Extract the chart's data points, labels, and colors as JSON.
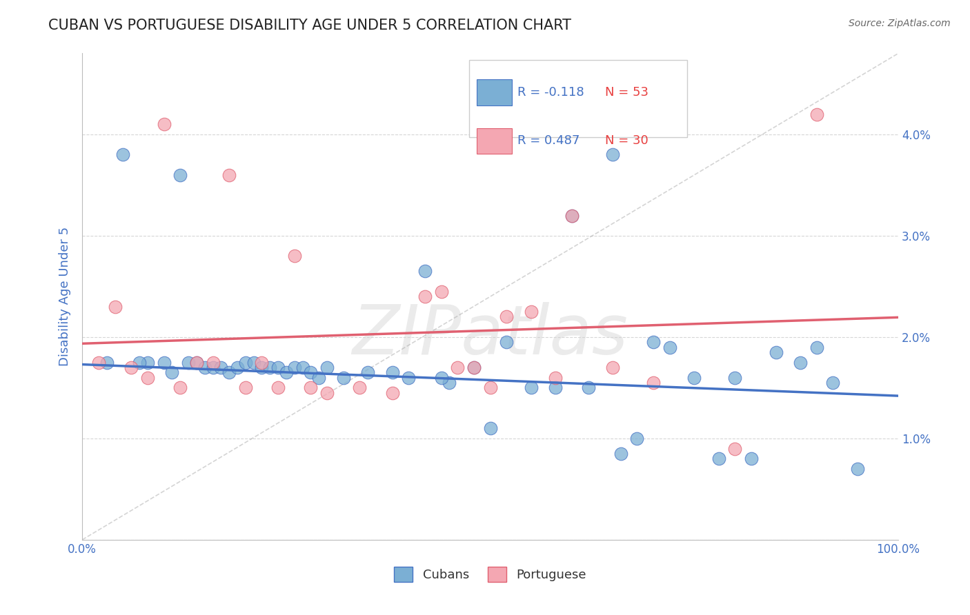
{
  "title": "CUBAN VS PORTUGUESE DISABILITY AGE UNDER 5 CORRELATION CHART",
  "source": "Source: ZipAtlas.com",
  "ylabel": "Disability Age Under 5",
  "xlim": [
    0.0,
    100.0
  ],
  "ylim": [
    0.0,
    4.8
  ],
  "yticks": [
    0.0,
    1.0,
    2.0,
    3.0,
    4.0
  ],
  "xticks": [
    0.0,
    25.0,
    50.0,
    75.0,
    100.0
  ],
  "xtick_labels": [
    "0.0%",
    "",
    "",
    "",
    "100.0%"
  ],
  "blue_r": "-0.118",
  "blue_n": "53",
  "pink_r": "0.487",
  "pink_n": "30",
  "blue_color": "#7BAFD4",
  "pink_color": "#F4A7B2",
  "blue_line_color": "#4472C4",
  "pink_line_color": "#E06070",
  "watermark": "ZIPatlas",
  "cubans_x": [
    3,
    5,
    8,
    10,
    12,
    13,
    14,
    15,
    16,
    17,
    18,
    19,
    20,
    21,
    22,
    23,
    24,
    25,
    26,
    27,
    28,
    30,
    32,
    35,
    38,
    40,
    42,
    45,
    48,
    50,
    52,
    55,
    58,
    60,
    62,
    65,
    68,
    70,
    72,
    75,
    78,
    80,
    82,
    85,
    88,
    90,
    92,
    95,
    7,
    11,
    29,
    44,
    66
  ],
  "cubans_y": [
    1.75,
    3.8,
    1.75,
    1.75,
    3.6,
    1.75,
    1.75,
    1.7,
    1.7,
    1.7,
    1.65,
    1.7,
    1.75,
    1.75,
    1.7,
    1.7,
    1.7,
    1.65,
    1.7,
    1.7,
    1.65,
    1.7,
    1.6,
    1.65,
    1.65,
    1.6,
    2.65,
    1.55,
    1.7,
    1.1,
    1.95,
    1.5,
    1.5,
    3.2,
    1.5,
    3.8,
    1.0,
    1.95,
    1.9,
    1.6,
    0.8,
    1.6,
    0.8,
    1.85,
    1.75,
    1.9,
    1.55,
    0.7,
    1.75,
    1.65,
    1.6,
    1.6,
    0.85
  ],
  "portuguese_x": [
    2,
    4,
    6,
    8,
    10,
    12,
    14,
    16,
    18,
    20,
    22,
    24,
    26,
    28,
    30,
    34,
    38,
    42,
    44,
    46,
    48,
    50,
    52,
    55,
    58,
    60,
    65,
    70,
    80,
    90
  ],
  "portuguese_y": [
    1.75,
    2.3,
    1.7,
    1.6,
    4.1,
    1.5,
    1.75,
    1.75,
    3.6,
    1.5,
    1.75,
    1.5,
    2.8,
    1.5,
    1.45,
    1.5,
    1.45,
    2.4,
    2.45,
    1.7,
    1.7,
    1.5,
    2.2,
    2.25,
    1.6,
    3.2,
    1.7,
    1.55,
    0.9,
    4.2
  ],
  "grid_color": "#CCCCCC",
  "background_color": "#FFFFFF",
  "title_color": "#222222",
  "axis_label_color": "#4472C4",
  "tick_label_color": "#4472C4",
  "legend_r_color": "#4472C4",
  "legend_n_color": "#E84040"
}
